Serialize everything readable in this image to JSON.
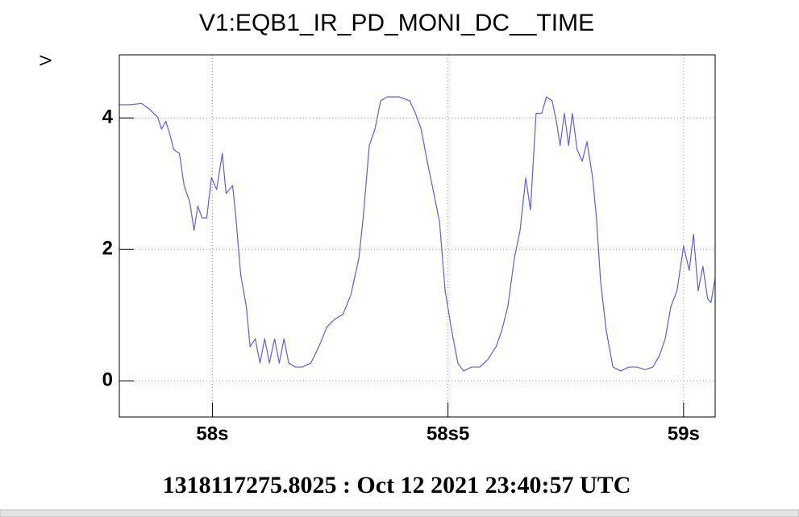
{
  "chart_data": {
    "type": "line",
    "title": "V1:EQB1_IR_PD_MONI_DC__TIME",
    "y_label": "V",
    "footer": "1318117275.8025 : Oct 12 2021 23:40:57 UTC",
    "xlim": [
      57.8025,
      59.067
    ],
    "ylim": [
      -0.55,
      4.96
    ],
    "xticks": [
      {
        "value": 58,
        "label": "58s"
      },
      {
        "value": 58.5,
        "label": "58s5"
      },
      {
        "value": 59,
        "label": "59s"
      }
    ],
    "yticks": [
      0,
      2,
      4
    ],
    "grid": true,
    "series": [
      {
        "color": "#5d5de6",
        "x": [
          57.803,
          57.824,
          57.85,
          57.867,
          57.884,
          57.892,
          57.901,
          57.909,
          57.918,
          57.93,
          57.94,
          57.952,
          57.961,
          57.969,
          57.978,
          57.988,
          57.998,
          58.009,
          58.021,
          58.029,
          58.043,
          58.05,
          58.06,
          58.072,
          58.08,
          58.091,
          58.101,
          58.111,
          58.121,
          58.132,
          58.142,
          58.152,
          58.162,
          58.176,
          58.191,
          58.209,
          58.226,
          58.243,
          58.26,
          58.277,
          58.294,
          58.311,
          58.32,
          58.333,
          58.345,
          58.357,
          58.371,
          58.397,
          58.419,
          58.431,
          58.443,
          58.456,
          58.47,
          58.482,
          58.494,
          58.508,
          58.521,
          58.533,
          58.55,
          58.568,
          58.585,
          58.602,
          58.614,
          58.627,
          58.641,
          58.653,
          58.665,
          58.675,
          58.687,
          58.699,
          58.709,
          58.721,
          58.73,
          58.738,
          58.747,
          58.756,
          58.764,
          58.774,
          58.785,
          58.795,
          58.807,
          58.815,
          58.824,
          58.836,
          58.85,
          58.867,
          58.884,
          58.901,
          58.918,
          58.935,
          58.949,
          58.961,
          58.973,
          58.986,
          59.0,
          59.012,
          59.021,
          59.031,
          59.041,
          59.051,
          59.058,
          59.067
        ],
        "values": [
          4.2,
          4.2,
          4.22,
          4.13,
          4.01,
          3.83,
          3.95,
          3.77,
          3.52,
          3.46,
          2.97,
          2.72,
          2.29,
          2.66,
          2.48,
          2.48,
          3.09,
          2.91,
          3.46,
          2.85,
          2.97,
          2.48,
          1.62,
          1.13,
          0.52,
          0.64,
          0.27,
          0.64,
          0.27,
          0.64,
          0.27,
          0.64,
          0.27,
          0.21,
          0.21,
          0.27,
          0.52,
          0.82,
          0.94,
          1.01,
          1.31,
          1.87,
          2.48,
          3.58,
          3.83,
          4.26,
          4.32,
          4.32,
          4.26,
          4.07,
          3.83,
          3.34,
          2.85,
          2.42,
          1.37,
          0.76,
          0.27,
          0.15,
          0.21,
          0.21,
          0.33,
          0.52,
          0.76,
          1.13,
          1.87,
          2.29,
          3.09,
          2.6,
          4.07,
          4.07,
          4.32,
          4.26,
          3.95,
          3.58,
          4.07,
          3.58,
          4.07,
          3.52,
          3.34,
          3.64,
          3.09,
          2.48,
          1.5,
          0.76,
          0.21,
          0.15,
          0.21,
          0.21,
          0.17,
          0.21,
          0.39,
          0.64,
          1.13,
          1.37,
          2.05,
          1.68,
          2.23,
          1.37,
          1.74,
          1.25,
          1.19,
          1.56
        ]
      }
    ]
  }
}
